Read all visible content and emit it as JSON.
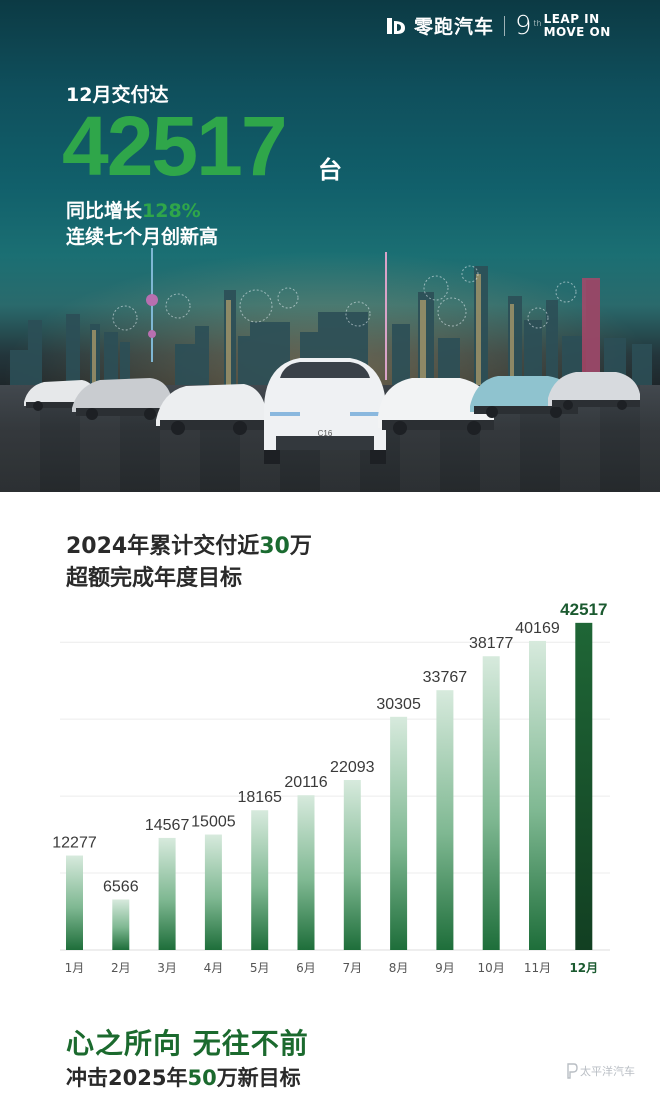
{
  "brand": {
    "name": "零跑汽车",
    "anniversary_number": "9",
    "anniversary_suffix": "th",
    "tagline_line1": "LEAP IN",
    "tagline_line2": "MOVE ON"
  },
  "hero": {
    "headline": "12月交付达",
    "delivery_number": "42517",
    "unit": "台",
    "yoy_prefix": "同比增长",
    "yoy_pct": "128%",
    "streak": "连续七个月创新高",
    "featured_car_badge": "C16"
  },
  "chart_section": {
    "title_prefix": "2024年累计交付近",
    "title_highlight": "30",
    "title_suffix": "万",
    "subtitle": "超额完成年度目标"
  },
  "chart_data": {
    "type": "bar",
    "categories": [
      "1月",
      "2月",
      "3月",
      "4月",
      "5月",
      "6月",
      "7月",
      "8月",
      "9月",
      "10月",
      "11月",
      "12月"
    ],
    "values": [
      12277,
      6566,
      14567,
      15005,
      18165,
      20116,
      22093,
      30305,
      33767,
      38177,
      40169,
      42517
    ],
    "highlight_index": 11,
    "ylim": [
      0,
      45000
    ],
    "grid": true,
    "colors": {
      "bar_top": "#9fcfb0",
      "bar_bottom": "#1e6e3a",
      "bar_highlight": "#1b5a30",
      "label": "#3a3a3a",
      "label_highlight": "#1b5a30"
    }
  },
  "footer": {
    "slogan": "心之所向 无往不前",
    "target_prefix": "冲击2025年",
    "target_highlight": "50",
    "target_suffix": "万新目标",
    "watermark": "太平洋汽车"
  }
}
